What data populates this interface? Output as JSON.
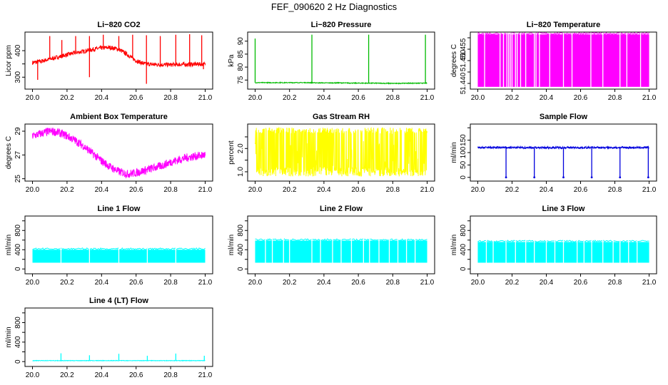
{
  "title": "FEF_090620  2 Hz Diagnostics",
  "chart_data": [
    {
      "type": "line",
      "title": "Li−820 CO2",
      "ylabel": "Licor ppm",
      "color": "#ff0000",
      "xlim": [
        20.0,
        21.0
      ],
      "ylim": [
        255,
        470
      ],
      "yticks": [
        300,
        350,
        400
      ],
      "ytick_labels": [
        "300",
        "",
        "400"
      ],
      "series": [
        {
          "x": [
            20.0,
            20.05,
            20.1,
            20.15,
            20.2,
            20.25,
            20.3,
            20.35,
            20.4,
            20.45,
            20.5,
            20.55,
            20.6,
            20.65,
            20.7,
            20.75,
            20.8,
            20.85,
            20.9,
            20.95,
            21.0
          ],
          "y": [
            355,
            360,
            368,
            376,
            385,
            392,
            398,
            405,
            410,
            412,
            405,
            385,
            362,
            350,
            348,
            347,
            347,
            348,
            348,
            349,
            349
          ],
          "band": 16
        }
      ],
      "spikes": [
        {
          "x": 20.1,
          "y": 455
        },
        {
          "x": 20.17,
          "y": 440
        },
        {
          "x": 20.25,
          "y": 455
        },
        {
          "x": 20.33,
          "y": 455
        },
        {
          "x": 20.41,
          "y": 460
        },
        {
          "x": 20.5,
          "y": 455
        },
        {
          "x": 20.58,
          "y": 460
        },
        {
          "x": 20.66,
          "y": 458
        },
        {
          "x": 20.74,
          "y": 455
        },
        {
          "x": 20.83,
          "y": 460
        },
        {
          "x": 20.91,
          "y": 462
        },
        {
          "x": 20.98,
          "y": 458
        },
        {
          "x": 20.03,
          "y": 290
        },
        {
          "x": 20.33,
          "y": 300
        },
        {
          "x": 20.66,
          "y": 275
        },
        {
          "x": 20.99,
          "y": 330
        }
      ]
    },
    {
      "type": "line",
      "title": "Li−820 Pressure",
      "ylabel": "kPa",
      "color": "#00bb00",
      "xlim": [
        20.0,
        21.0
      ],
      "ylim": [
        71.5,
        93.5
      ],
      "yticks": [
        75,
        80,
        85,
        90
      ],
      "ytick_labels": [
        "75",
        "80",
        "85",
        "90"
      ],
      "series": [
        {
          "x": [
            20.0,
            20.1,
            20.2,
            20.3,
            20.4,
            20.5,
            20.6,
            20.7,
            20.8,
            20.9,
            21.0
          ],
          "y": [
            74.0,
            74.0,
            74.0,
            74.0,
            73.9,
            73.9,
            73.8,
            73.8,
            73.7,
            73.8,
            73.8
          ],
          "band": 0.3
        }
      ],
      "spikes": [
        {
          "x": 20.0,
          "y": 91.0
        },
        {
          "x": 20.33,
          "y": 92.5
        },
        {
          "x": 20.66,
          "y": 92.5
        },
        {
          "x": 20.99,
          "y": 92.5
        }
      ]
    },
    {
      "type": "area",
      "title": "Li−820 Temperature",
      "ylabel": "degrees C",
      "color": "#ff00ff",
      "xlim": [
        20.0,
        21.0
      ],
      "ylim": [
        51.4375,
        51.4625
      ],
      "yticks": [
        51.44,
        51.445,
        51.45,
        51.455,
        51.46
      ],
      "ytick_labels": [
        "51.440",
        "",
        "51.450",
        "51.455",
        ""
      ],
      "fill_range": [
        51.4385,
        51.4615
      ],
      "gaps": [
        20.04,
        20.13,
        20.15,
        20.17,
        20.18,
        20.19,
        20.2,
        20.22,
        20.23,
        20.25,
        20.28,
        20.33,
        20.34,
        20.36,
        20.42,
        20.5,
        20.55,
        20.66,
        20.73,
        20.83,
        20.87,
        20.95
      ]
    },
    {
      "type": "line",
      "title": "Ambient Box Temperature",
      "ylabel": "degrees C",
      "color": "#ff00ff",
      "xlim": [
        20.0,
        21.0
      ],
      "ylim": [
        24.8,
        29.6
      ],
      "yticks": [
        25,
        27,
        29
      ],
      "ytick_labels": [
        "25",
        "27",
        "29"
      ],
      "series": [
        {
          "x": [
            20.0,
            20.05,
            20.1,
            20.15,
            20.2,
            20.25,
            20.3,
            20.35,
            20.4,
            20.45,
            20.5,
            20.55,
            20.6,
            20.65,
            20.7,
            20.75,
            20.8,
            20.85,
            20.9,
            20.95,
            21.0
          ],
          "y": [
            28.6,
            28.8,
            29.0,
            28.9,
            28.6,
            28.2,
            27.7,
            27.1,
            26.5,
            26.0,
            25.6,
            25.4,
            25.5,
            25.7,
            25.9,
            26.1,
            26.4,
            26.6,
            26.8,
            26.9,
            27.0
          ],
          "band": 0.7
        }
      ],
      "spikes": []
    },
    {
      "type": "line",
      "title": "Gas Stream RH",
      "ylabel": "percent",
      "color": "#ffff00",
      "xlim": [
        20.0,
        21.0
      ],
      "ylim": [
        0.6,
        3.05
      ],
      "yticks": [
        1.0,
        1.5,
        2.0,
        2.5
      ],
      "ytick_labels": [
        "1.0",
        "",
        "2.0",
        ""
      ],
      "series": [
        {
          "x": [
            20.0,
            21.0
          ],
          "y": [
            2.0,
            2.0
          ],
          "band_low": 0.8,
          "band_high": 2.9
        }
      ],
      "spikes": []
    },
    {
      "type": "line",
      "title": "Sample Flow",
      "ylabel": "ml/min",
      "color": "#0000dd",
      "xlim": [
        20.0,
        21.0
      ],
      "ylim": [
        -15,
        215
      ],
      "yticks": [
        0,
        50,
        100,
        150,
        200
      ],
      "ytick_labels": [
        "0",
        "50",
        "100",
        "150",
        ""
      ],
      "series": [
        {
          "x": [
            20.0,
            21.0
          ],
          "y": [
            120,
            120
          ],
          "band": 8
        }
      ],
      "dips": [
        {
          "x": 20.165,
          "y": 0
        },
        {
          "x": 20.33,
          "y": 0
        },
        {
          "x": 20.5,
          "y": 0
        },
        {
          "x": 20.665,
          "y": 0
        },
        {
          "x": 20.83,
          "y": 0
        },
        {
          "x": 20.995,
          "y": 0
        }
      ]
    },
    {
      "type": "area",
      "title": "Line 1 Flow",
      "ylabel": "ml/min",
      "color": "#00ffff",
      "xlim": [
        20.0,
        21.0
      ],
      "ylim": [
        -100,
        1100
      ],
      "yticks": [
        0,
        200,
        400,
        600,
        800,
        1000
      ],
      "ytick_labels": [
        "0",
        "",
        "400",
        "",
        "800",
        ""
      ],
      "fill_range": [
        130,
        400
      ],
      "gaps": [
        20.165,
        20.33,
        20.5,
        20.665,
        20.83
      ]
    },
    {
      "type": "area",
      "title": "Line 2 Flow",
      "ylabel": "ml/min",
      "color": "#00ffff",
      "xlim": [
        20.0,
        21.0
      ],
      "ylim": [
        -100,
        1100
      ],
      "yticks": [
        0,
        200,
        400,
        600,
        800,
        1000
      ],
      "ytick_labels": [
        "0",
        "",
        "400",
        "",
        "800",
        ""
      ],
      "fill_range": [
        130,
        590
      ],
      "gaps": [
        20.06,
        20.1,
        20.165,
        20.2,
        20.33,
        20.38,
        20.45,
        20.5,
        20.56,
        20.63,
        20.665,
        20.72,
        20.78,
        20.83,
        20.88,
        20.93
      ]
    },
    {
      "type": "area",
      "title": "Line 3 Flow",
      "ylabel": "ml/min",
      "color": "#00ffff",
      "xlim": [
        20.0,
        21.0
      ],
      "ylim": [
        -100,
        1100
      ],
      "yticks": [
        0,
        200,
        400,
        600,
        800,
        1000
      ],
      "ytick_labels": [
        "0",
        "",
        "400",
        "",
        "800",
        ""
      ],
      "fill_range": [
        130,
        560
      ],
      "gaps": [
        20.05,
        20.09,
        20.165,
        20.22,
        20.28,
        20.33,
        20.4,
        20.45,
        20.5,
        20.58,
        20.62,
        20.665,
        20.73,
        20.79,
        20.83,
        20.88,
        20.93
      ]
    },
    {
      "type": "line",
      "title": "Line 4 (LT) Flow",
      "ylabel": "ml/min",
      "color": "#00ffff",
      "xlim": [
        20.0,
        21.0
      ],
      "ylim": [
        -100,
        1100
      ],
      "yticks": [
        0,
        200,
        400,
        600,
        800,
        1000
      ],
      "ytick_labels": [
        "0",
        "",
        "400",
        "",
        "800",
        ""
      ],
      "series": [
        {
          "x": [
            20.0,
            21.0
          ],
          "y": [
            20,
            20
          ],
          "band": 10
        }
      ],
      "spikes": [
        {
          "x": 20.165,
          "y": 170
        },
        {
          "x": 20.33,
          "y": 130
        },
        {
          "x": 20.5,
          "y": 160
        },
        {
          "x": 20.665,
          "y": 120
        },
        {
          "x": 20.83,
          "y": 165
        },
        {
          "x": 20.995,
          "y": 120
        }
      ]
    }
  ],
  "xticks": [
    20.0,
    20.2,
    20.4,
    20.6,
    20.8,
    21.0
  ],
  "xtick_labels": [
    "20.0",
    "20.2",
    "20.4",
    "20.6",
    "20.8",
    "21.0"
  ]
}
